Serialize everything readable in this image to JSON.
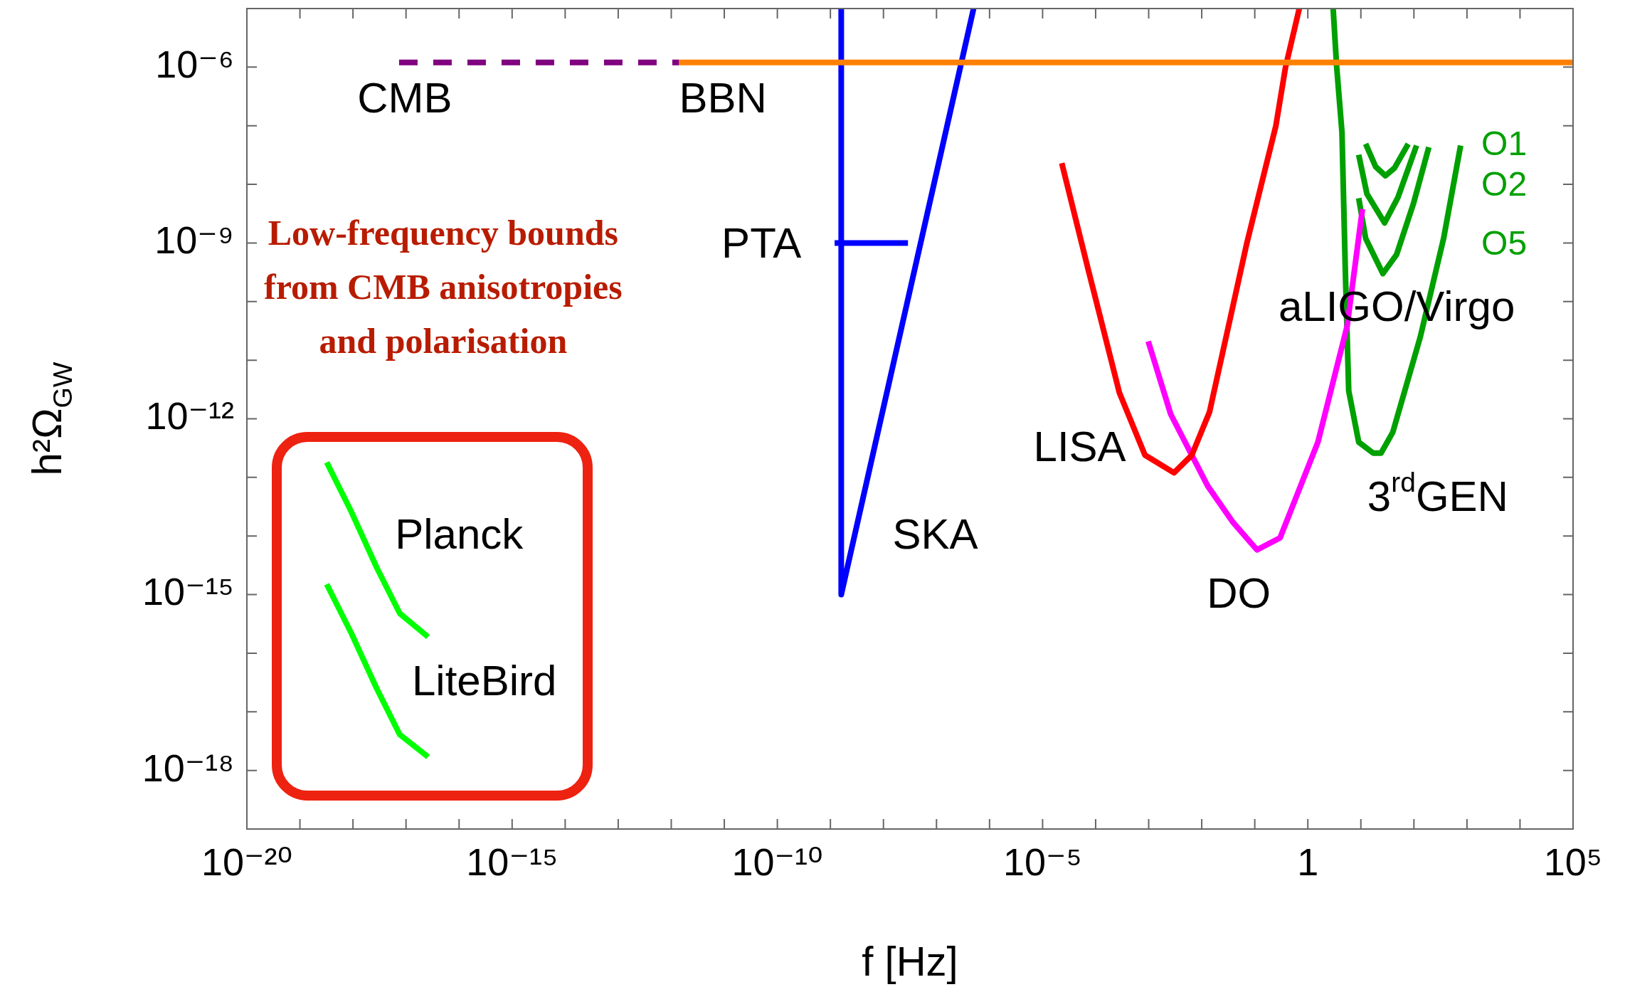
{
  "chart_data": {
    "type": "line",
    "xlabel": "f [Hz]",
    "ylabel": "h²Ω$_{GW}$",
    "log": "xy",
    "grid": false,
    "legend": false,
    "marker": "none",
    "line_style": "solid",
    "xlim": [
      1e-20,
      100000.0
    ],
    "ylim": [
      1e-19,
      1e-05
    ],
    "xticks": [
      {
        "value": 1e-20,
        "label": "10⁻²⁰"
      },
      {
        "value": 1e-19,
        "label": null
      },
      {
        "value": 1e-18,
        "label": null
      },
      {
        "value": 1e-17,
        "label": null
      },
      {
        "value": 1e-16,
        "label": null
      },
      {
        "value": 1e-15,
        "label": "10⁻¹⁵"
      },
      {
        "value": 1e-14,
        "label": null
      },
      {
        "value": 1e-13,
        "label": null
      },
      {
        "value": 1e-12,
        "label": null
      },
      {
        "value": 1e-11,
        "label": null
      },
      {
        "value": 1e-10,
        "label": "10⁻¹⁰"
      },
      {
        "value": 1e-09,
        "label": null
      },
      {
        "value": 1e-08,
        "label": null
      },
      {
        "value": 1e-07,
        "label": null
      },
      {
        "value": 1e-06,
        "label": null
      },
      {
        "value": 1e-05,
        "label": "10⁻⁵"
      },
      {
        "value": 0.0001,
        "label": null
      },
      {
        "value": 0.001,
        "label": null
      },
      {
        "value": 0.01,
        "label": null
      },
      {
        "value": 0.1,
        "label": null
      },
      1,
      {
        "value": 10,
        "label": null
      },
      {
        "value": 100,
        "label": null
      },
      {
        "value": 1000,
        "label": null
      },
      {
        "value": 10000,
        "label": null
      },
      {
        "value": 100000.0,
        "label": "10⁵"
      }
    ],
    "yticks": [
      {
        "value": 1e-19,
        "label": null
      },
      {
        "value": 1e-18,
        "label": "10⁻¹⁸"
      },
      {
        "value": 1e-17,
        "label": null
      },
      {
        "value": 1e-16,
        "label": null
      },
      {
        "value": 1e-15,
        "label": "10⁻¹⁵"
      },
      {
        "value": 1e-14,
        "label": null
      },
      {
        "value": 1e-13,
        "label": null
      },
      {
        "value": 1e-12,
        "label": "10⁻¹²"
      },
      {
        "value": 1e-11,
        "label": null
      },
      {
        "value": 1e-10,
        "label": null
      },
      {
        "value": 1e-09,
        "label": "10⁻⁹"
      },
      {
        "value": 1e-08,
        "label": null
      },
      {
        "value": 1e-07,
        "label": null
      },
      {
        "value": 1e-06,
        "label": "10⁻⁶"
      },
      {
        "value": 1e-05,
        "label": null
      }
    ],
    "series": [
      {
        "color": "#800080",
        "line_style": "dashed",
        "x": [
          7.4e-18,
          1.4e-12
        ],
        "values": [
          1.2e-06,
          1.2e-06
        ]
      },
      {
        "color": "#ff8000",
        "x": [
          1.4e-12,
          100000.0
        ],
        "values": [
          1.2e-06,
          1.2e-06
        ]
      },
      {
        "color": "#0000ff",
        "x": [
          1.2e-09,
          2.9e-08
        ],
        "values": [
          1e-09,
          1e-09
        ]
      },
      {
        "color": "#0000ff",
        "x": [
          1.6e-09,
          1.6e-09,
          5e-07
        ],
        "values": [
          1e-05,
          1e-15,
          1e-05
        ]
      },
      {
        "color": "#ff0000",
        "x": [
          2.3e-05,
          7.2e-05,
          0.00028,
          0.00085,
          0.003,
          0.0065,
          0.014,
          0.071,
          0.25,
          0.38,
          0.69
        ],
        "values": [
          2.3e-08,
          3.6e-10,
          2.8e-12,
          2.4e-13,
          1.2e-13,
          2.4e-13,
          1.3e-12,
          1e-09,
          1e-07,
          1e-06,
          1e-05
        ]
      },
      {
        "color": "#ff00ff",
        "x": [
          0.00098,
          0.0026,
          0.013,
          0.039,
          0.11,
          0.3,
          1.55,
          5.5,
          10.7
        ],
        "values": [
          2.1e-11,
          1.2e-12,
          7.1e-14,
          1.7e-14,
          5.8e-15,
          9.3e-15,
          4e-13,
          3.8e-11,
          3.8e-09
        ]
      },
      {
        "color": "#00a000",
        "x": [
          3.0,
          3.5,
          4.4,
          5.1,
          5.9,
          9.1,
          17,
          24,
          40,
          132,
          363,
          759
        ],
        "values": [
          1e-05,
          1e-06,
          7.8e-08,
          3.2e-10,
          3e-12,
          4e-13,
          2.6e-13,
          2.6e-13,
          5.9e-13,
          2.5e-11,
          1.2e-09,
          4.6e-08
        ]
      },
      {
        "color": "#00a000",
        "x": [
          12.3,
          19,
          29,
          43,
          78
        ],
        "values": [
          4.9e-08,
          2e-08,
          1.4e-08,
          1.9e-08,
          4.9e-08
        ]
      },
      {
        "color": "#00a000",
        "x": [
          9.1,
          13,
          28,
          50,
          112
        ],
        "values": [
          3.2e-08,
          6.9e-09,
          2.2e-09,
          6e-09,
          4.6e-08
        ]
      },
      {
        "color": "#00a000",
        "x": [
          9.1,
          12.3,
          26,
          47,
          98,
          191
        ],
        "values": [
          5.8e-09,
          1.2e-09,
          3e-10,
          6.3e-10,
          4.7e-09,
          4.3e-08
        ]
      },
      {
        "color": "#00ff00",
        "x": [
          3.2e-19,
          9.3e-19,
          2.8e-18,
          7.6e-18,
          2.6e-17
        ],
        "values": [
          1.8e-13,
          2.6e-14,
          2.9e-15,
          4.8e-16,
          1.9e-16
        ]
      },
      {
        "color": "#00ff00",
        "x": [
          3.2e-19,
          9.3e-19,
          2.8e-18,
          7.6e-18,
          2.6e-17
        ],
        "values": [
          1.5e-15,
          2.2e-16,
          2.5e-17,
          4.1e-18,
          1.7e-18
        ]
      }
    ],
    "annotations": [
      "CMB",
      "BBN",
      "PTA",
      "SKA",
      "LISA",
      "DO",
      "aLIGO/Virgo",
      "3$^{rd}$GEN",
      "O1",
      "O2",
      "O5",
      "Planck",
      "LiteBird",
      "Low-frequency bounds from CMB anisotropies and polarisation"
    ]
  }
}
